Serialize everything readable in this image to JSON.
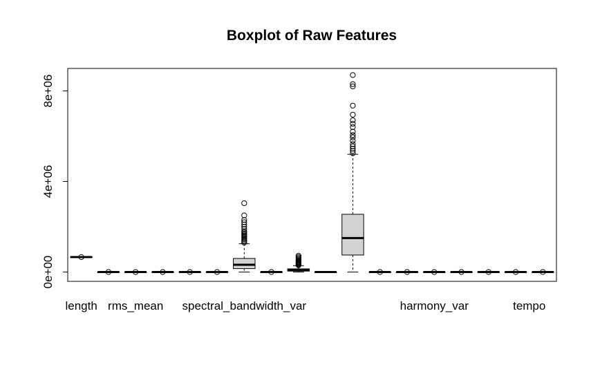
{
  "chart_data": {
    "type": "boxplot",
    "title": "Boxplot of Raw Features",
    "xlabel": "",
    "ylabel": "",
    "ylim": [
      -500000,
      9000000
    ],
    "y_ticks": [
      0,
      4000000,
      8000000
    ],
    "y_tick_labels": [
      "0e+00",
      "4e+06",
      "8e+06"
    ],
    "x_tick_labels": [
      "length",
      "rms_mean",
      "spectral_bandwidth_var",
      "harmony_var",
      "tempo"
    ],
    "x_tick_positions": [
      1,
      3,
      7,
      14,
      17.5
    ],
    "grid": false,
    "legend": "none",
    "box_fill": "#d3d3d3",
    "boxes": [
      {
        "q1": 661000,
        "median": 661000,
        "q3": 661000,
        "whisker_low": 661000,
        "whisker_high": 661000,
        "outliers": [
          661000
        ]
      },
      {
        "q1": 0,
        "median": 0,
        "q3": 0,
        "whisker_low": 0,
        "whisker_high": 0,
        "outliers": [
          0
        ]
      },
      {
        "q1": 0,
        "median": 0,
        "q3": 0,
        "whisker_low": 0,
        "whisker_high": 0,
        "outliers": [
          0
        ]
      },
      {
        "q1": 0,
        "median": 0,
        "q3": 0,
        "whisker_low": 0,
        "whisker_high": 0,
        "outliers": [
          0
        ]
      },
      {
        "q1": 0,
        "median": 0,
        "q3": 0,
        "whisker_low": 0,
        "whisker_high": 0,
        "outliers": [
          0
        ]
      },
      {
        "q1": 0,
        "median": 0,
        "q3": 0,
        "whisker_low": 0,
        "whisker_high": 0,
        "outliers": [
          0
        ]
      },
      {
        "q1": 150000,
        "median": 320000,
        "q3": 600000,
        "whisker_low": 0,
        "whisker_high": 1250000,
        "outliers": [
          1300000,
          1350000,
          1400000,
          1450000,
          1500000,
          1550000,
          1600000,
          1650000,
          1700000,
          1750000,
          1800000,
          1900000,
          2000000,
          2100000,
          2200000,
          2300000,
          2500000,
          3040000
        ]
      },
      {
        "q1": 0,
        "median": 0,
        "q3": 0,
        "whisker_low": 0,
        "whisker_high": 0,
        "outliers": [
          0
        ]
      },
      {
        "q1": 40000,
        "median": 80000,
        "q3": 140000,
        "whisker_low": 0,
        "whisker_high": 280000,
        "outliers": [
          300000,
          330000,
          360000,
          390000,
          420000,
          450000,
          480000,
          520000,
          560000,
          610000,
          660000,
          720000
        ]
      },
      {
        "q1": 0,
        "median": 0,
        "q3": 0,
        "whisker_low": 0,
        "whisker_high": 0,
        "outliers": []
      },
      {
        "q1": 750000,
        "median": 1500000,
        "q3": 2550000,
        "whisker_low": 0,
        "whisker_high": 5200000,
        "outliers": [
          5250000,
          5350000,
          5450000,
          5550000,
          5650000,
          5800000,
          5950000,
          6050000,
          6200000,
          6400000,
          6550000,
          6700000,
          6950000,
          7350000,
          8200000,
          8300000,
          8700000
        ]
      },
      {
        "q1": 0,
        "median": 0,
        "q3": 0,
        "whisker_low": 0,
        "whisker_high": 0,
        "outliers": [
          0
        ]
      },
      {
        "q1": 0,
        "median": 0,
        "q3": 0,
        "whisker_low": 0,
        "whisker_high": 0,
        "outliers": [
          0
        ]
      },
      {
        "q1": 0,
        "median": 0,
        "q3": 0,
        "whisker_low": 0,
        "whisker_high": 0,
        "outliers": [
          0
        ]
      },
      {
        "q1": 0,
        "median": 0,
        "q3": 0,
        "whisker_low": 0,
        "whisker_high": 0,
        "outliers": [
          0
        ]
      },
      {
        "q1": 0,
        "median": 0,
        "q3": 0,
        "whisker_low": 0,
        "whisker_high": 0,
        "outliers": [
          0
        ]
      },
      {
        "q1": 0,
        "median": 0,
        "q3": 0,
        "whisker_low": 0,
        "whisker_high": 0,
        "outliers": [
          0
        ]
      },
      {
        "q1": 0,
        "median": 0,
        "q3": 0,
        "whisker_low": 0,
        "whisker_high": 0,
        "outliers": [
          0
        ]
      }
    ]
  }
}
